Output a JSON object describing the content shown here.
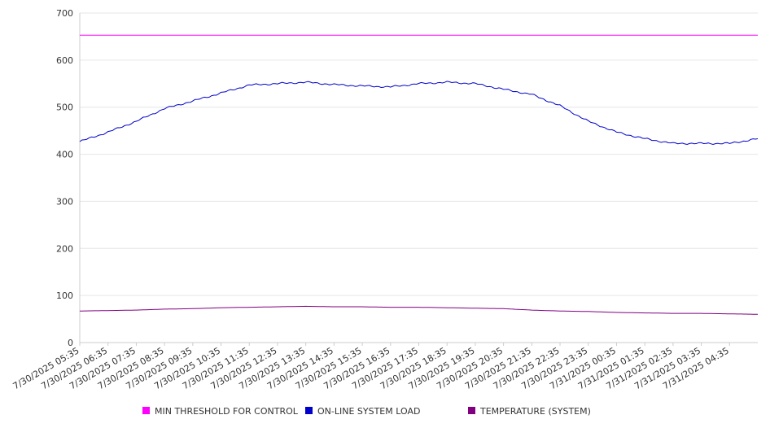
{
  "chart_data": {
    "type": "line",
    "title": "",
    "xlabel": "",
    "ylabel": "",
    "ylim": [
      0,
      700
    ],
    "yticks": [
      "0",
      "100",
      "200",
      "300",
      "400",
      "500",
      "600",
      "700"
    ],
    "x_tick_labels": [
      "7/30/2025 05:35",
      "7/30/2025 06:35",
      "7/30/2025 07:35",
      "7/30/2025 08:35",
      "7/30/2025 09:35",
      "7/30/2025 10:35",
      "7/30/2025 11:35",
      "7/30/2025 12:35",
      "7/30/2025 13:35",
      "7/30/2025 14:35",
      "7/30/2025 15:35",
      "7/30/2025 16:35",
      "7/30/2025 17:35",
      "7/30/2025 18:35",
      "7/30/2025 19:35",
      "7/30/2025 20:35",
      "7/30/2025 21:35",
      "7/30/2025 22:35",
      "7/30/2025 23:35",
      "7/31/2025 00:35",
      "7/31/2025 01:35",
      "7/31/2025 02:35",
      "7/31/2025 03:35",
      "7/31/2025 04:35"
    ],
    "grid": true,
    "legend_position": "bottom",
    "series": [
      {
        "name": "MIN THRESHOLD FOR CONTROL",
        "color": "#ff00ff",
        "values": [
          653,
          653,
          653,
          653,
          653,
          653,
          653,
          653,
          653,
          653,
          653,
          653,
          653,
          653,
          653,
          653,
          653,
          653,
          653,
          653,
          653,
          653,
          653,
          653,
          653
        ]
      },
      {
        "name": "ON-LINE SYSTEM LOAD",
        "color": "#0000cc",
        "values": [
          427,
          447,
          470,
          497,
          513,
          530,
          547,
          550,
          553,
          548,
          545,
          543,
          550,
          553,
          550,
          538,
          527,
          503,
          470,
          447,
          433,
          423,
          423,
          423,
          433
        ]
      },
      {
        "name": "TEMPERATURE (SYSTEM)",
        "color": "#800080",
        "values": [
          67,
          68,
          69,
          71,
          72,
          74,
          75,
          76,
          77,
          76,
          76,
          75,
          75,
          74,
          73,
          72,
          69,
          67,
          66,
          64,
          63,
          62,
          62,
          61,
          60
        ]
      }
    ]
  }
}
